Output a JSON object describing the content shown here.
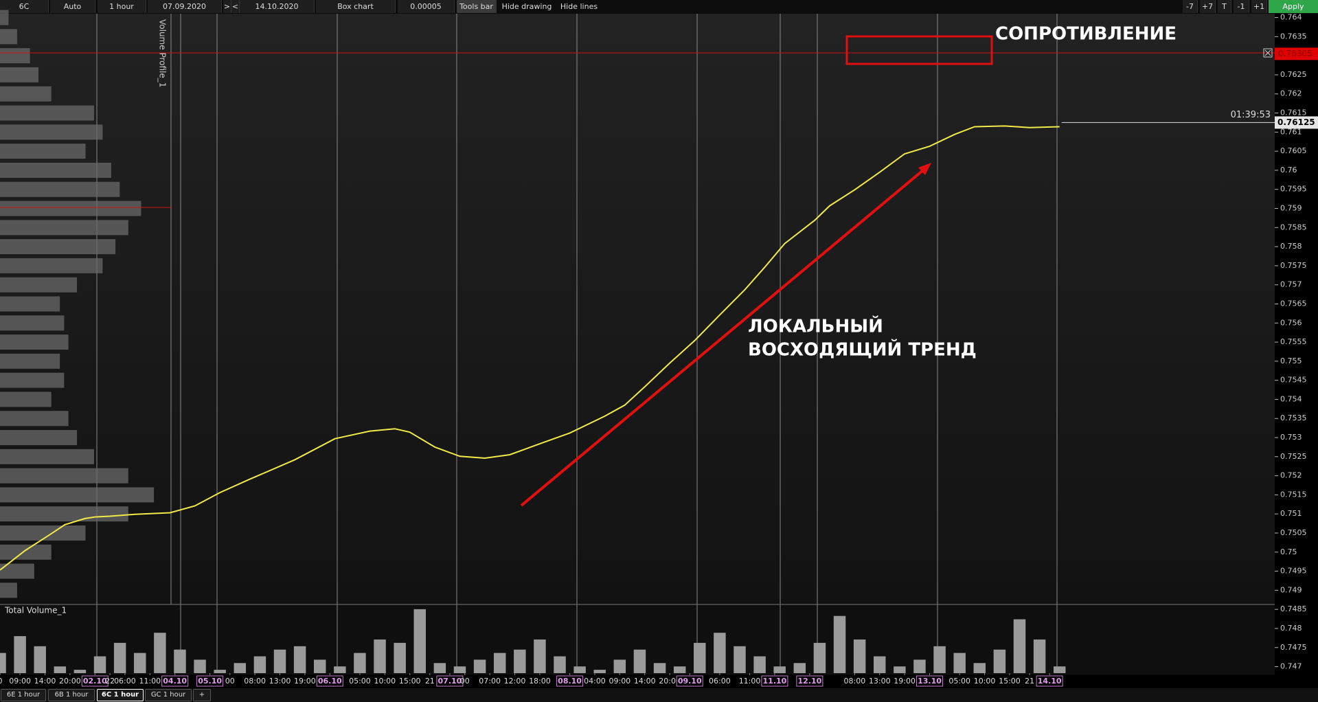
{
  "toolbar": {
    "symbol": "6C",
    "scale": "Auto",
    "timeframe": "1 hour",
    "date_from": "07.09.2020",
    "next": ">",
    "prev": "<",
    "date_to": "14.10.2020",
    "chart_type": "Box chart",
    "tick_size": "0.00005",
    "tools_bar": "Tools bar",
    "hide_drawing": "Hide drawing",
    "hide_lines": "Hide lines",
    "buttons": [
      "-7",
      "+7",
      "T",
      "-1",
      "+1"
    ],
    "apply": "Apply"
  },
  "chart_data": [
    {
      "type": "line",
      "ylim": [
        0.74683,
        0.7641
      ],
      "xlim": [
        0,
        213
      ],
      "yticks": [
        0.764,
        0.7635,
        0.763,
        0.7625,
        0.762,
        0.7615,
        0.761,
        0.7605,
        0.76,
        0.7595,
        0.759,
        0.7585,
        0.758,
        0.7575,
        0.757,
        0.7565,
        0.756,
        0.7555,
        0.755,
        0.7545,
        0.754,
        0.7535,
        0.753,
        0.7525,
        0.752,
        0.7515,
        0.751,
        0.7505,
        0.75,
        0.7495,
        0.749,
        0.7485,
        0.748,
        0.7475,
        0.747
      ],
      "xticks": [
        0,
        {
          "value": 4,
          "label": "09:00"
        },
        {
          "value": 9,
          "label": "14:00"
        },
        {
          "value": 14,
          "label": "20:00"
        },
        {
          "value": 19,
          "label": "02.10"
        },
        {
          "value": 25,
          "label": "06:00"
        },
        {
          "value": 30,
          "label": "11:00"
        },
        {
          "value": 35,
          "label": "04.10"
        },
        22,
        {
          "value": 42,
          "label": "05.10"
        },
        {
          "value": 46,
          "label": "00"
        },
        {
          "value": 51,
          "label": "08:00"
        },
        {
          "value": 56,
          "label": "13:00"
        },
        {
          "value": 61,
          "label": "19:00"
        },
        {
          "value": 66,
          "label": "06.10"
        },
        {
          "value": 72,
          "label": "05:00"
        },
        {
          "value": 77,
          "label": "10:00"
        },
        {
          "value": 82,
          "label": "15:00"
        },
        {
          "value": 86,
          "label": "21"
        },
        {
          "value": 90,
          "label": "07.10"
        },
        {
          "value": 93,
          "label": "00"
        },
        {
          "value": 98,
          "label": "07:00"
        },
        {
          "value": 103,
          "label": "12:00"
        },
        {
          "value": 108,
          "label": "18:00"
        },
        {
          "value": 114,
          "label": "08.10"
        },
        {
          "value": 119,
          "label": "04:00"
        },
        {
          "value": 124,
          "label": "09:00"
        },
        {
          "value": 129,
          "label": "14:00"
        },
        {
          "value": 134,
          "label": "20:00"
        },
        {
          "value": 138,
          "label": "09.10"
        },
        {
          "value": 144,
          "label": "06:00"
        },
        {
          "value": 150,
          "label": "11:00"
        },
        {
          "value": 155,
          "label": "11.10"
        },
        {
          "value": 162,
          "label": "12.10"
        },
        {
          "value": 171,
          "label": "08:00"
        },
        {
          "value": 176,
          "label": "13:00"
        },
        {
          "value": 181,
          "label": "19:00"
        },
        {
          "value": 186,
          "label": "13.10"
        },
        {
          "value": 192,
          "label": "05:00"
        },
        {
          "value": 197,
          "label": "10:00"
        },
        {
          "value": 202,
          "label": "15:00"
        },
        {
          "value": 206,
          "label": "21"
        },
        {
          "value": 210,
          "label": "14.10"
        }
      ],
      "x": [
        0,
        5,
        10,
        13,
        17,
        19,
        22,
        27,
        34,
        39,
        44,
        50,
        59,
        67,
        74,
        79,
        82,
        87,
        92,
        97,
        102,
        107,
        114,
        121,
        125,
        129,
        134,
        139,
        144,
        149,
        153,
        157,
        163,
        166,
        171,
        176,
        181,
        186,
        191,
        195,
        201,
        206,
        212
      ],
      "series": [
        {
          "color": "#f2ea48",
          "values": [
            0.74953,
            0.75004,
            0.75046,
            0.75072,
            0.75088,
            0.75092,
            0.75094,
            0.75099,
            0.75103,
            0.75121,
            0.75156,
            0.75191,
            0.75242,
            0.75297,
            0.75317,
            0.75323,
            0.75314,
            0.75275,
            0.75251,
            0.75246,
            0.75255,
            0.75279,
            0.75312,
            0.75356,
            0.75385,
            0.75433,
            0.75495,
            0.75554,
            0.75621,
            0.75687,
            0.75746,
            0.75808,
            0.75869,
            0.75907,
            0.75949,
            0.75995,
            0.76043,
            0.76063,
            0.76094,
            0.76114,
            0.76116,
            0.76112,
            0.76114
          ]
        }
      ],
      "current_price": 0.76125,
      "timer": "01:39:53",
      "resistance_price": 0.76305,
      "annotations": {
        "resistance": "СОПРОТИВЛЕНИЕ",
        "trend_line1": "ЛОКАЛЬНЫЙ",
        "trend_line2": "ВОСХОДЯЩИЙ ТРЕНД"
      }
    },
    {
      "type": "bar",
      "title": "Total Volume_1",
      "ylim": [
        0,
        100
      ],
      "xlim": [
        0,
        213
      ],
      "color": "#9a9a9a",
      "x": [
        0,
        4,
        8,
        12,
        16,
        20,
        24,
        28,
        32,
        36,
        40,
        44,
        48,
        52,
        56,
        60,
        64,
        68,
        72,
        76,
        80,
        84,
        88,
        92,
        96,
        100,
        104,
        108,
        112,
        116,
        120,
        124,
        128,
        132,
        136,
        140,
        144,
        148,
        152,
        156,
        160,
        164,
        168,
        172,
        176,
        180,
        184,
        188,
        192,
        196,
        200,
        204,
        208,
        212
      ],
      "values": [
        30,
        55,
        40,
        10,
        5,
        25,
        45,
        30,
        60,
        35,
        20,
        5,
        15,
        25,
        35,
        40,
        20,
        10,
        30,
        50,
        45,
        95,
        15,
        10,
        20,
        30,
        35,
        50,
        25,
        10,
        5,
        20,
        35,
        15,
        10,
        45,
        60,
        40,
        25,
        10,
        15,
        45,
        85,
        50,
        25,
        10,
        20,
        40,
        30,
        15,
        35,
        80,
        50,
        10
      ]
    },
    {
      "type": "profile",
      "title": "Volume Profile_1",
      "xlim": [
        0,
        200
      ],
      "color": "#6a6a6a",
      "y": [
        0.764,
        0.7635,
        0.763,
        0.7625,
        0.762,
        0.7615,
        0.761,
        0.7605,
        0.76,
        0.7595,
        0.759,
        0.7585,
        0.758,
        0.7575,
        0.757,
        0.7565,
        0.756,
        0.7555,
        0.755,
        0.7545,
        0.754,
        0.7535,
        0.753,
        0.7525,
        0.752,
        0.7515,
        0.751,
        0.7505,
        0.75,
        0.7495,
        0.749
      ],
      "values": [
        10,
        20,
        35,
        45,
        60,
        110,
        120,
        100,
        130,
        140,
        165,
        150,
        135,
        120,
        90,
        70,
        75,
        80,
        70,
        75,
        60,
        80,
        90,
        110,
        150,
        180,
        150,
        100,
        60,
        40,
        20
      ]
    }
  ],
  "tabs": [
    "6E 1 hour",
    "6B 1 hour",
    "6C 1 hour",
    "GC 1 hour",
    "+"
  ]
}
